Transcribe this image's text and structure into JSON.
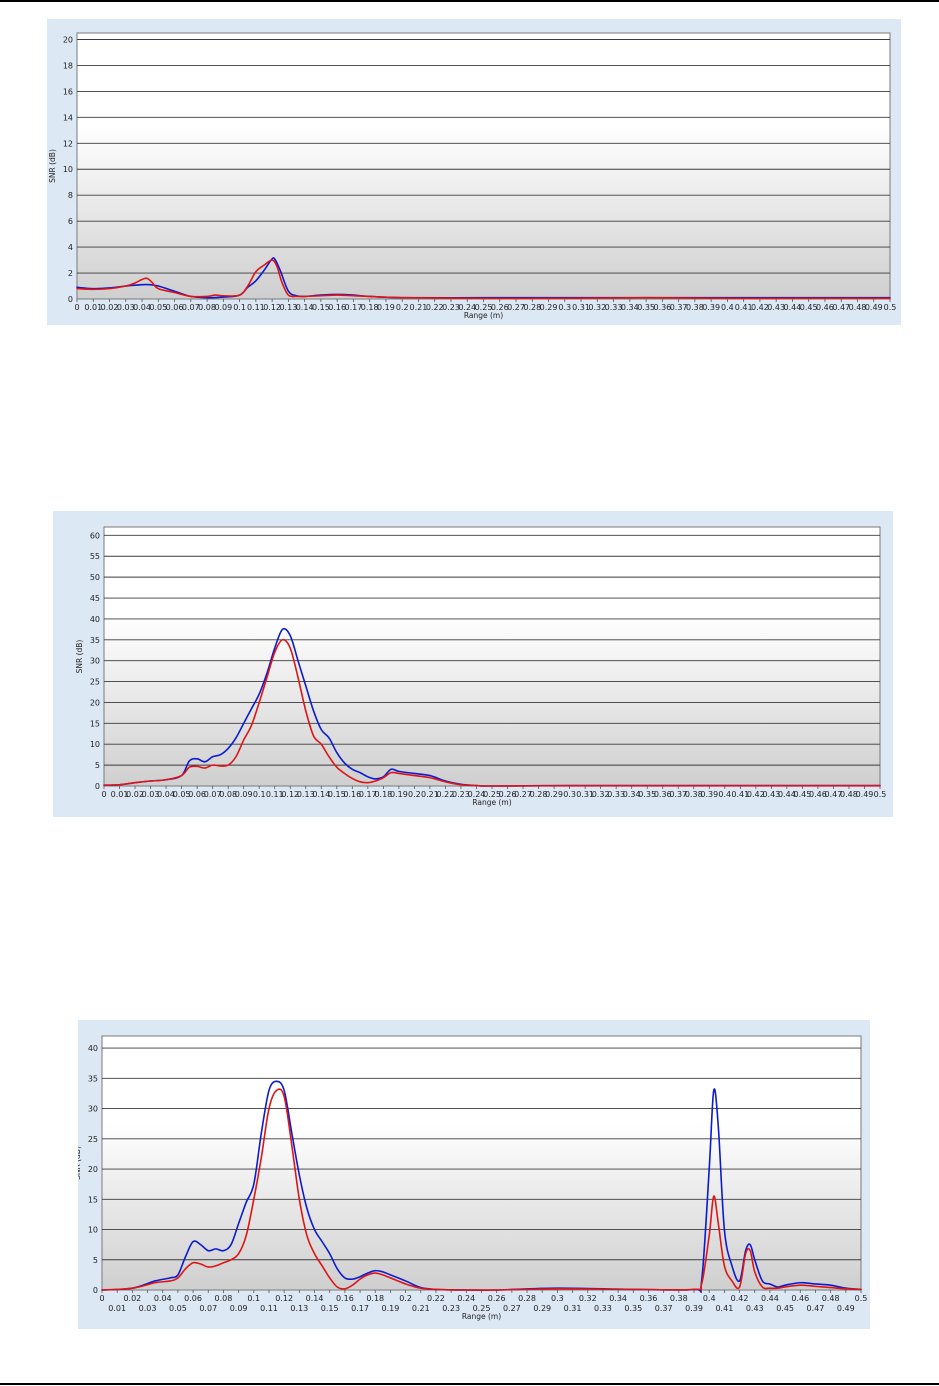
{
  "chart_data": [
    {
      "type": "line",
      "xlabel": "Range (m)",
      "ylabel": "SNR (dB)",
      "xlim": [
        0,
        0.5
      ],
      "ylim": [
        0,
        20.5
      ],
      "yticks": [
        0,
        2,
        4,
        6,
        8,
        10,
        12,
        14,
        16,
        18,
        20
      ],
      "xtick_rows": [
        [
          "0",
          "0.01",
          "0.02",
          "0.03",
          "0.04",
          "0.05",
          "0.06",
          "0.07",
          "0.08",
          "0.09",
          "0.1",
          "0.11",
          "0.12",
          "0.13",
          "0.14",
          "0.15",
          "0.16",
          "0.17",
          "0.18",
          "0.19",
          "0.2",
          "0.21",
          "0.22",
          "0.23",
          "0.24",
          "0.25",
          "0.26",
          "0.27",
          "0.28",
          "0.29",
          "0.3",
          "0.31",
          "0.32",
          "0.33",
          "0.34",
          "0.35",
          "0.36",
          "0.37",
          "0.38",
          "0.39",
          "0.4",
          "0.41",
          "0.42",
          "0.43",
          "0.44",
          "0.45",
          "0.46",
          "0.47",
          "0.48",
          "0.49",
          "0.5"
        ]
      ],
      "grid": true,
      "colors": {
        "blue": "#0b1bd1",
        "red": "#e01414"
      },
      "series": [
        {
          "color": "blue",
          "x": [
            0,
            0.01,
            0.02,
            0.03,
            0.04,
            0.045,
            0.05,
            0.06,
            0.07,
            0.08,
            0.09,
            0.1,
            0.105,
            0.11,
            0.115,
            0.12,
            0.122,
            0.125,
            0.13,
            0.135,
            0.14,
            0.15,
            0.16,
            0.17,
            0.18,
            0.2,
            0.25,
            0.3,
            0.35,
            0.4,
            0.45,
            0.5
          ],
          "y": [
            0.9,
            0.8,
            0.85,
            1.0,
            1.1,
            1.1,
            1.0,
            0.6,
            0.2,
            0.1,
            0.15,
            0.3,
            0.9,
            1.4,
            2.2,
            3.1,
            3.0,
            2.2,
            0.6,
            0.25,
            0.2,
            0.3,
            0.35,
            0.3,
            0.2,
            0.1,
            0.1,
            0.1,
            0.1,
            0.1,
            0.1,
            0.1
          ]
        },
        {
          "color": "red",
          "x": [
            0,
            0.01,
            0.02,
            0.03,
            0.035,
            0.04,
            0.043,
            0.046,
            0.05,
            0.06,
            0.07,
            0.08,
            0.085,
            0.09,
            0.1,
            0.105,
            0.11,
            0.115,
            0.12,
            0.123,
            0.126,
            0.13,
            0.135,
            0.14,
            0.15,
            0.16,
            0.17,
            0.18,
            0.2,
            0.25,
            0.3,
            0.35,
            0.4,
            0.45,
            0.5
          ],
          "y": [
            0.8,
            0.75,
            0.8,
            1.0,
            1.2,
            1.5,
            1.6,
            1.3,
            0.8,
            0.5,
            0.2,
            0.2,
            0.3,
            0.25,
            0.3,
            1.0,
            2.1,
            2.6,
            3.0,
            2.5,
            1.3,
            0.3,
            0.2,
            0.2,
            0.25,
            0.3,
            0.25,
            0.2,
            0.1,
            0.05,
            0.05,
            0.1,
            0.05,
            0.05,
            0.05
          ]
        }
      ]
    },
    {
      "type": "line",
      "xlabel": "Range (m)",
      "ylabel": "SNR (dB)",
      "xlim": [
        0,
        0.5
      ],
      "ylim": [
        0,
        62
      ],
      "yticks": [
        0,
        5,
        10,
        15,
        20,
        25,
        30,
        35,
        40,
        45,
        50,
        55,
        60
      ],
      "xtick_rows": [
        [
          "0",
          "0.01",
          "0.02",
          "0.03",
          "0.04",
          "0.05",
          "0.06",
          "0.07",
          "0.08",
          "0.09",
          "0.1",
          "0.11",
          "0.12",
          "0.13",
          "0.14",
          "0.15",
          "0.16",
          "0.17",
          "0.18",
          "0.19",
          "0.2",
          "0.21",
          "0.22",
          "0.23",
          "0.24",
          "0.25",
          "0.26",
          "0.27",
          "0.28",
          "0.29",
          "0.3",
          "0.31",
          "0.32",
          "0.33",
          "0.34",
          "0.35",
          "0.36",
          "0.37",
          "0.38",
          "0.39",
          "0.4",
          "0.41",
          "0.42",
          "0.43",
          "0.44",
          "0.45",
          "0.46",
          "0.47",
          "0.48",
          "0.49",
          "0.5"
        ]
      ],
      "grid": true,
      "colors": {
        "blue": "#0b1bd1",
        "red": "#e01414"
      },
      "series": [
        {
          "color": "blue",
          "x": [
            0,
            0.01,
            0.02,
            0.03,
            0.04,
            0.05,
            0.055,
            0.06,
            0.065,
            0.07,
            0.075,
            0.08,
            0.085,
            0.09,
            0.095,
            0.1,
            0.105,
            0.11,
            0.115,
            0.12,
            0.125,
            0.13,
            0.135,
            0.14,
            0.145,
            0.15,
            0.155,
            0.16,
            0.165,
            0.17,
            0.175,
            0.18,
            0.185,
            0.19,
            0.2,
            0.21,
            0.22,
            0.23,
            0.24,
            0.25,
            0.3,
            0.35,
            0.4,
            0.45,
            0.5
          ],
          "y": [
            0.2,
            0.3,
            0.8,
            1.2,
            1.5,
            2.5,
            6.0,
            6.5,
            5.8,
            7.0,
            7.5,
            9.0,
            11.5,
            15.0,
            18.5,
            22.0,
            27.0,
            33.0,
            37.5,
            36.0,
            30.0,
            24.0,
            18.0,
            13.5,
            11.5,
            8.0,
            5.5,
            4.0,
            3.2,
            2.2,
            1.7,
            2.2,
            4.0,
            3.5,
            3.0,
            2.5,
            1.2,
            0.4,
            0.1,
            0.0,
            0.1,
            0.1,
            0.1,
            0.1,
            0.1
          ]
        },
        {
          "color": "red",
          "x": [
            0,
            0.01,
            0.02,
            0.03,
            0.04,
            0.05,
            0.055,
            0.06,
            0.065,
            0.07,
            0.075,
            0.08,
            0.085,
            0.09,
            0.095,
            0.1,
            0.105,
            0.11,
            0.115,
            0.12,
            0.125,
            0.13,
            0.135,
            0.14,
            0.145,
            0.15,
            0.155,
            0.16,
            0.165,
            0.17,
            0.175,
            0.18,
            0.185,
            0.19,
            0.2,
            0.21,
            0.22,
            0.23,
            0.24,
            0.25,
            0.3,
            0.35,
            0.4,
            0.45,
            0.5
          ],
          "y": [
            0.2,
            0.3,
            0.8,
            1.2,
            1.5,
            2.5,
            4.5,
            4.7,
            4.3,
            5.0,
            4.8,
            5.0,
            7.0,
            11.0,
            14.5,
            20.0,
            26.0,
            32.0,
            35.0,
            33.0,
            26.0,
            18.0,
            12.0,
            10.0,
            7.0,
            4.5,
            3.0,
            1.8,
            1.0,
            0.8,
            1.2,
            2.0,
            3.2,
            3.0,
            2.5,
            2.0,
            1.0,
            0.3,
            0.1,
            0.0,
            0.05,
            0.05,
            0.05,
            0.05,
            0.05
          ]
        }
      ]
    },
    {
      "type": "line",
      "xlabel": "Range (m)",
      "ylabel": "SNR (dB)",
      "xlim": [
        0,
        0.5
      ],
      "ylim": [
        0,
        42
      ],
      "yticks": [
        0,
        5,
        10,
        15,
        20,
        25,
        30,
        35,
        40
      ],
      "xtick_rows": [
        [
          "0",
          "0.02",
          "0.04",
          "0.06",
          "0.08",
          "0.1",
          "0.12",
          "0.14",
          "0.16",
          "0.18",
          "0.2",
          "0.22",
          "0.24",
          "0.26",
          "0.28",
          "0.3",
          "0.32",
          "0.34",
          "0.36",
          "0.38",
          "0.4",
          "0.42",
          "0.44",
          "0.46",
          "0.48",
          "0.5"
        ],
        [
          "0.01",
          "0.03",
          "0.05",
          "0.07",
          "0.09",
          "0.11",
          "0.13",
          "0.15",
          "0.17",
          "0.19",
          "0.21",
          "0.23",
          "0.25",
          "0.27",
          "0.29",
          "0.31",
          "0.33",
          "0.35",
          "0.37",
          "0.39",
          "0.41",
          "0.43",
          "0.45",
          "0.47",
          "0.49"
        ]
      ],
      "grid": true,
      "colors": {
        "blue": "#0b1bd1",
        "red": "#e01414"
      },
      "series": [
        {
          "color": "blue",
          "x": [
            0,
            0.02,
            0.035,
            0.045,
            0.05,
            0.055,
            0.06,
            0.065,
            0.07,
            0.075,
            0.08,
            0.085,
            0.09,
            0.095,
            0.1,
            0.105,
            0.11,
            0.115,
            0.12,
            0.125,
            0.13,
            0.135,
            0.14,
            0.145,
            0.15,
            0.155,
            0.16,
            0.165,
            0.17,
            0.175,
            0.18,
            0.185,
            0.19,
            0.2,
            0.21,
            0.22,
            0.24,
            0.26,
            0.3,
            0.35,
            0.39,
            0.395,
            0.4,
            0.403,
            0.406,
            0.41,
            0.415,
            0.42,
            0.424,
            0.427,
            0.43,
            0.435,
            0.44,
            0.445,
            0.45,
            0.46,
            0.47,
            0.48,
            0.49,
            0.5
          ],
          "y": [
            0,
            0.3,
            1.5,
            2.0,
            2.5,
            5.5,
            8.0,
            7.5,
            6.5,
            6.8,
            6.5,
            7.5,
            11.0,
            14.5,
            17.5,
            26.0,
            33.0,
            34.5,
            33.0,
            26.0,
            19.0,
            13.5,
            10.0,
            8.0,
            6.0,
            3.5,
            2.0,
            1.8,
            2.2,
            2.8,
            3.2,
            3.0,
            2.5,
            1.5,
            0.4,
            0.1,
            0.0,
            0.0,
            0.3,
            0.1,
            0.1,
            1.5,
            20.0,
            33.0,
            27.0,
            10.0,
            4.0,
            1.5,
            6.5,
            7.5,
            5.0,
            1.5,
            1.0,
            0.5,
            0.8,
            1.2,
            1.0,
            0.8,
            0.3,
            0.1
          ]
        },
        {
          "color": "red",
          "x": [
            0,
            0.02,
            0.035,
            0.045,
            0.05,
            0.055,
            0.06,
            0.065,
            0.07,
            0.075,
            0.08,
            0.085,
            0.09,
            0.095,
            0.1,
            0.105,
            0.11,
            0.115,
            0.12,
            0.125,
            0.13,
            0.135,
            0.14,
            0.145,
            0.15,
            0.155,
            0.16,
            0.165,
            0.17,
            0.175,
            0.18,
            0.185,
            0.19,
            0.2,
            0.21,
            0.22,
            0.24,
            0.26,
            0.3,
            0.35,
            0.39,
            0.395,
            0.4,
            0.403,
            0.406,
            0.41,
            0.415,
            0.42,
            0.424,
            0.427,
            0.43,
            0.435,
            0.44,
            0.445,
            0.45,
            0.46,
            0.47,
            0.48,
            0.49,
            0.5
          ],
          "y": [
            0,
            0.3,
            1.2,
            1.5,
            2.0,
            3.5,
            4.5,
            4.3,
            3.8,
            4.0,
            4.5,
            5.0,
            6.0,
            9.0,
            15.0,
            22.0,
            30.0,
            33.0,
            32.0,
            24.0,
            15.0,
            9.0,
            6.0,
            4.0,
            2.0,
            0.5,
            0.2,
            0.8,
            1.8,
            2.5,
            2.8,
            2.5,
            2.0,
            1.0,
            0.3,
            0.1,
            0.0,
            0.0,
            0.2,
            0.1,
            0.1,
            1.0,
            9.0,
            15.5,
            11.0,
            4.0,
            1.5,
            0.5,
            6.0,
            6.5,
            3.0,
            0.5,
            0.3,
            0.3,
            0.5,
            0.8,
            0.6,
            0.4,
            0.2,
            0.1
          ]
        }
      ]
    }
  ]
}
